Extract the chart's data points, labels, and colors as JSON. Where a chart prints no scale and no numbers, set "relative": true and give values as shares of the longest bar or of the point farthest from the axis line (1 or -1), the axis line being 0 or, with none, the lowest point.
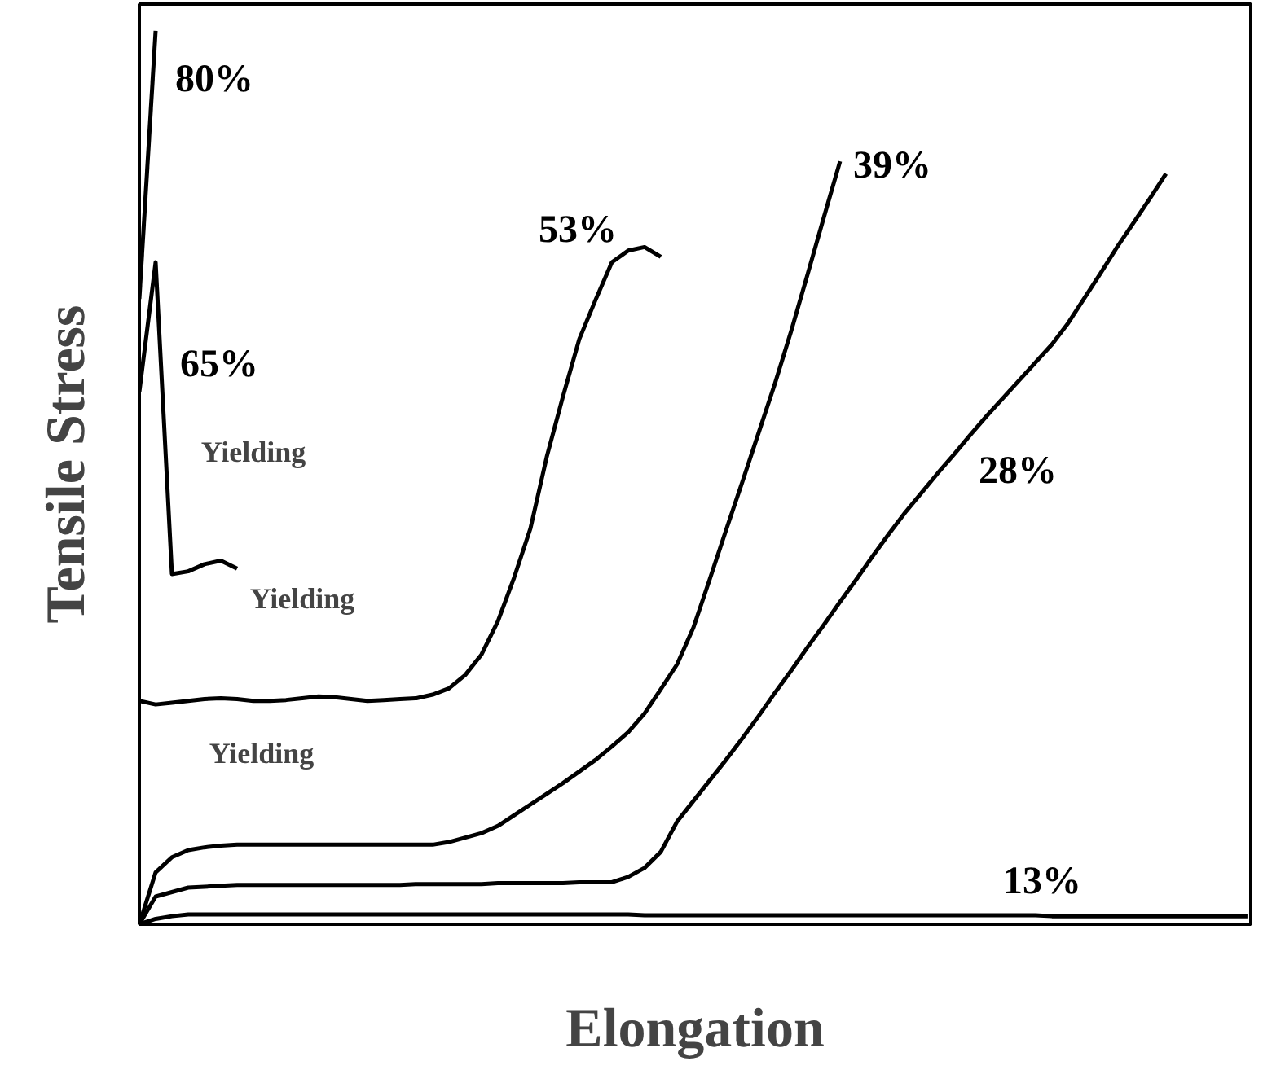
{
  "chart_data": {
    "type": "line",
    "relative": true,
    "xlabel": "Elongation",
    "ylabel": "Tensile Stress",
    "grid": false,
    "tick_labels": false,
    "marker": "none",
    "line_style": "solid",
    "categories": [
      null,
      null,
      null,
      null,
      null,
      null,
      null,
      null,
      null,
      null,
      null,
      null,
      null,
      null,
      null,
      null,
      null,
      null,
      null,
      null,
      null,
      null,
      null,
      null,
      null,
      null,
      null,
      null,
      null,
      null,
      null,
      null,
      null,
      null,
      null,
      null,
      null,
      null,
      null,
      null,
      null,
      null,
      null,
      null,
      null,
      null,
      null,
      null,
      null,
      null,
      null,
      null,
      null,
      null,
      null,
      null,
      null,
      null,
      null,
      null,
      null,
      null,
      null,
      null,
      null,
      null,
      null,
      null,
      null
    ],
    "series": [
      {
        "name": "80%",
        "color": "#000000",
        "values": [
          0.7,
          1.0,
          null,
          null,
          null,
          null,
          null,
          null,
          null,
          null,
          null,
          null,
          null,
          null,
          null,
          null,
          null,
          null,
          null,
          null,
          null,
          null,
          null,
          null,
          null,
          null,
          null,
          null,
          null,
          null,
          null,
          null,
          null,
          null,
          null,
          null,
          null,
          null,
          null,
          null,
          null,
          null,
          null,
          null,
          null,
          null,
          null,
          null,
          null,
          null,
          null,
          null,
          null,
          null,
          null,
          null,
          null,
          null,
          null,
          null,
          null,
          null,
          null,
          null,
          null,
          null,
          null,
          null,
          null
        ]
      },
      {
        "name": "65%",
        "color": "#000000",
        "values": [
          0.596,
          0.741,
          0.392,
          0.395,
          0.403,
          0.407,
          0.398,
          null,
          null,
          null,
          null,
          null,
          null,
          null,
          null,
          null,
          null,
          null,
          null,
          null,
          null,
          null,
          null,
          null,
          null,
          null,
          null,
          null,
          null,
          null,
          null,
          null,
          null,
          null,
          null,
          null,
          null,
          null,
          null,
          null,
          null,
          null,
          null,
          null,
          null,
          null,
          null,
          null,
          null,
          null,
          null,
          null,
          null,
          null,
          null,
          null,
          null,
          null,
          null,
          null,
          null,
          null,
          null,
          null,
          null,
          null,
          null,
          null,
          null
        ]
      },
      {
        "name": "53%",
        "color": "#000000",
        "values": [
          0.25,
          0.246,
          0.248,
          0.25,
          0.252,
          0.253,
          0.252,
          0.25,
          0.25,
          0.251,
          0.253,
          0.255,
          0.254,
          0.252,
          0.25,
          0.251,
          0.252,
          0.253,
          0.257,
          0.264,
          0.279,
          0.302,
          0.339,
          0.388,
          0.443,
          0.523,
          0.591,
          0.655,
          0.699,
          0.741,
          0.754,
          0.758,
          0.747,
          null,
          null,
          null,
          null,
          null,
          null,
          null,
          null,
          null,
          null,
          null,
          null,
          null,
          null,
          null,
          null,
          null,
          null,
          null,
          null,
          null,
          null,
          null,
          null,
          null,
          null,
          null,
          null,
          null,
          null,
          null,
          null,
          null,
          null,
          null,
          null
        ]
      },
      {
        "name": "39%",
        "color": "#000000",
        "values": [
          0,
          0.058,
          0.075,
          0.083,
          0.086,
          0.088,
          0.089,
          0.089,
          0.089,
          0.089,
          0.089,
          0.089,
          0.089,
          0.089,
          0.089,
          0.089,
          0.089,
          0.089,
          0.089,
          0.092,
          0.097,
          0.102,
          0.11,
          0.122,
          0.134,
          0.146,
          0.158,
          0.171,
          0.184,
          0.199,
          0.215,
          0.236,
          0.263,
          0.291,
          0.332,
          0.386,
          0.441,
          0.495,
          0.55,
          0.605,
          0.664,
          0.727,
          0.791,
          0.854,
          null,
          null,
          null,
          null,
          null,
          null,
          null,
          null,
          null,
          null,
          null,
          null,
          null,
          null,
          null,
          null,
          null,
          null,
          null,
          null,
          null,
          null,
          null,
          null,
          null
        ]
      },
      {
        "name": "28%",
        "color": "#000000",
        "values": [
          0,
          0.031,
          0.036,
          0.041,
          0.042,
          0.043,
          0.044,
          0.044,
          0.044,
          0.044,
          0.044,
          0.044,
          0.044,
          0.044,
          0.044,
          0.044,
          0.044,
          0.045,
          0.045,
          0.045,
          0.045,
          0.045,
          0.046,
          0.046,
          0.046,
          0.046,
          0.046,
          0.047,
          0.047,
          0.047,
          0.053,
          0.063,
          0.081,
          0.115,
          0.138,
          0.161,
          0.184,
          0.208,
          0.233,
          0.259,
          0.284,
          0.31,
          0.335,
          0.361,
          0.386,
          0.412,
          0.437,
          0.461,
          0.483,
          0.505,
          0.526,
          0.548,
          0.569,
          0.589,
          0.609,
          0.629,
          0.649,
          0.673,
          0.701,
          0.729,
          0.758,
          0.785,
          0.812,
          0.84,
          null,
          null,
          null,
          null,
          null
        ]
      },
      {
        "name": "13%",
        "color": "#000000",
        "values": [
          0,
          0.006,
          0.009,
          0.011,
          0.011,
          0.011,
          0.011,
          0.011,
          0.011,
          0.011,
          0.011,
          0.011,
          0.011,
          0.011,
          0.011,
          0.011,
          0.011,
          0.011,
          0.011,
          0.011,
          0.011,
          0.011,
          0.011,
          0.011,
          0.011,
          0.011,
          0.011,
          0.011,
          0.011,
          0.011,
          0.011,
          0.01,
          0.01,
          0.01,
          0.01,
          0.01,
          0.01,
          0.01,
          0.01,
          0.01,
          0.01,
          0.01,
          0.01,
          0.01,
          0.01,
          0.01,
          0.01,
          0.01,
          0.01,
          0.01,
          0.01,
          0.01,
          0.01,
          0.01,
          0.01,
          0.01,
          0.009,
          0.009,
          0.009,
          0.009,
          0.009,
          0.009,
          0.009,
          0.009,
          0.009,
          0.009,
          0.009,
          0.009,
          0.009
        ]
      }
    ],
    "annotations": [
      "Yielding",
      "Yielding",
      "Yielding"
    ]
  }
}
